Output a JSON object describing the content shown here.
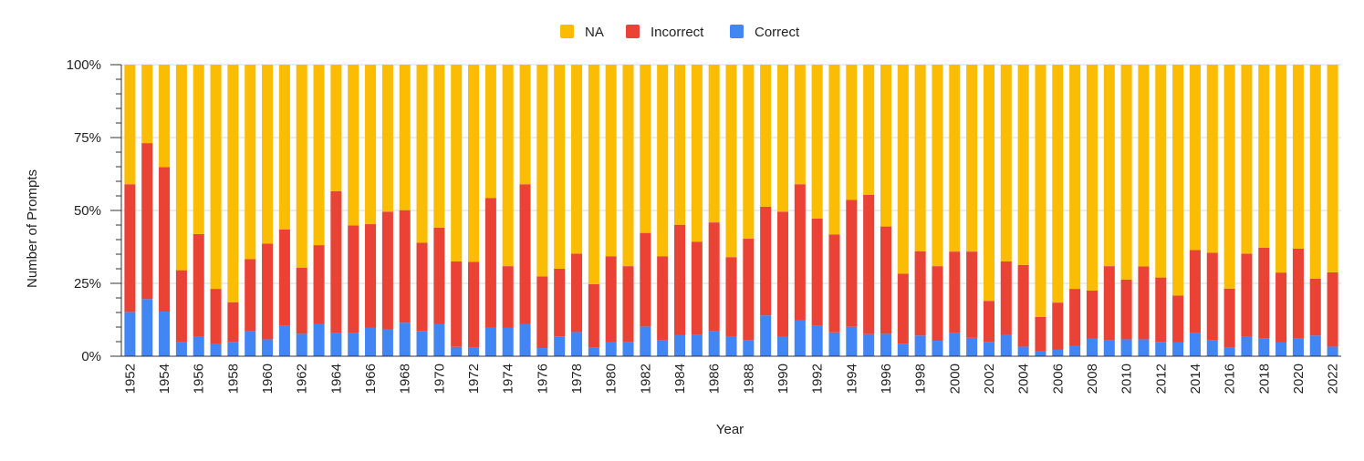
{
  "chart_data": {
    "type": "bar",
    "stacked": true,
    "normalized": true,
    "xlabel": "Year",
    "ylabel": "Number of Prompts",
    "ylim": [
      0,
      100
    ],
    "y_ticks": [
      "0%",
      "25%",
      "50%",
      "75%",
      "100%"
    ],
    "y_tick_values": [
      0,
      25,
      50,
      75,
      100
    ],
    "grid": true,
    "legend_position": "top-center",
    "legend": [
      "NA",
      "Incorrect",
      "Correct"
    ],
    "categories": [
      "1952",
      "1953",
      "1954",
      "1955",
      "1956",
      "1957",
      "1958",
      "1959",
      "1960",
      "1961",
      "1962",
      "1963",
      "1964",
      "1965",
      "1966",
      "1967",
      "1968",
      "1969",
      "1970",
      "1971",
      "1972",
      "1973",
      "1974",
      "1975",
      "1976",
      "1977",
      "1978",
      "1979",
      "1980",
      "1981",
      "1982",
      "1983",
      "1984",
      "1985",
      "1986",
      "1987",
      "1988",
      "1989",
      "1990",
      "1991",
      "1992",
      "1993",
      "1994",
      "1995",
      "1996",
      "1997",
      "1998",
      "1999",
      "2000",
      "2001",
      "2002",
      "2003",
      "2004",
      "2005",
      "2006",
      "2007",
      "2008",
      "2009",
      "2010",
      "2011",
      "2012",
      "2013",
      "2014",
      "2015",
      "2016",
      "2017",
      "2018",
      "2019",
      "2020",
      "2021",
      "2022"
    ],
    "x_tick_labels": [
      "1952",
      "1954",
      "1956",
      "1958",
      "1960",
      "1962",
      "1964",
      "1966",
      "1968",
      "1970",
      "1972",
      "1974",
      "1976",
      "1978",
      "1980",
      "1982",
      "1984",
      "1986",
      "1988",
      "1990",
      "1992",
      "1994",
      "1996",
      "1998",
      "2000",
      "2002",
      "2004",
      "2006",
      "2008",
      "2010",
      "2012",
      "2014",
      "2016",
      "2018",
      "2020",
      "2022"
    ],
    "series": [
      {
        "name": "Correct",
        "color": "#4285F4",
        "values": [
          15.2,
          19.6,
          15.3,
          4.8,
          6.6,
          4.1,
          4.9,
          8.5,
          5.8,
          10.6,
          7.7,
          11.1,
          8.0,
          8.1,
          9.7,
          9.2,
          11.5,
          8.7,
          11.1,
          3.2,
          2.9,
          10.0,
          9.7,
          11.1,
          2.8,
          6.8,
          8.3,
          2.9,
          5.0,
          4.8,
          10.2,
          5.5,
          7.2,
          7.3,
          8.5,
          6.6,
          5.4,
          14.0,
          6.7,
          12.5,
          10.5,
          8.2,
          10.1,
          7.6,
          7.7,
          4.3,
          7.1,
          5.3,
          7.9,
          6.3,
          4.9,
          7.5,
          3.3,
          1.6,
          2.2,
          3.6,
          6.1,
          5.5,
          5.8,
          5.8,
          4.9,
          4.7,
          8.0,
          5.4,
          3.0,
          6.6,
          6.0,
          4.7,
          6.0,
          7.1,
          3.3
        ]
      },
      {
        "name": "Incorrect",
        "color": "#EA4335",
        "values": [
          43.8,
          53.5,
          49.6,
          24.7,
          35.3,
          19.0,
          13.6,
          24.8,
          32.8,
          32.9,
          22.7,
          27.0,
          48.6,
          36.8,
          35.6,
          40.4,
          38.6,
          30.2,
          33.0,
          29.3,
          29.5,
          44.3,
          21.2,
          47.9,
          24.6,
          23.2,
          26.9,
          21.8,
          29.3,
          26.1,
          32.1,
          28.8,
          37.9,
          32.0,
          37.4,
          27.4,
          34.9,
          37.3,
          42.9,
          46.5,
          36.7,
          33.6,
          43.5,
          47.8,
          36.8,
          24.0,
          28.9,
          25.6,
          28.0,
          29.6,
          14.1,
          25.0,
          28.0,
          11.9,
          16.2,
          19.5,
          16.4,
          25.4,
          20.5,
          25.0,
          22.1,
          16.1,
          28.4,
          30.1,
          20.2,
          28.6,
          31.2,
          24.0,
          30.9,
          19.5,
          25.5
        ]
      },
      {
        "name": "NA",
        "color": "#FBBC04",
        "values": [
          41.0,
          26.9,
          35.1,
          70.5,
          58.1,
          76.9,
          81.5,
          66.7,
          61.4,
          56.5,
          69.6,
          61.9,
          43.4,
          55.1,
          54.7,
          50.4,
          49.9,
          61.1,
          55.9,
          67.5,
          67.6,
          45.7,
          69.1,
          41.0,
          72.6,
          70.0,
          64.8,
          75.3,
          65.7,
          69.1,
          57.7,
          65.7,
          54.9,
          60.7,
          54.1,
          66.0,
          59.7,
          48.7,
          50.4,
          41.0,
          52.8,
          58.2,
          46.4,
          44.6,
          55.5,
          71.7,
          64.0,
          69.1,
          64.1,
          64.1,
          81.0,
          67.5,
          68.7,
          86.5,
          81.6,
          76.9,
          77.5,
          69.1,
          73.7,
          69.2,
          73.0,
          79.2,
          63.6,
          64.5,
          76.8,
          64.8,
          62.8,
          71.3,
          63.1,
          73.4,
          71.2
        ]
      }
    ]
  }
}
